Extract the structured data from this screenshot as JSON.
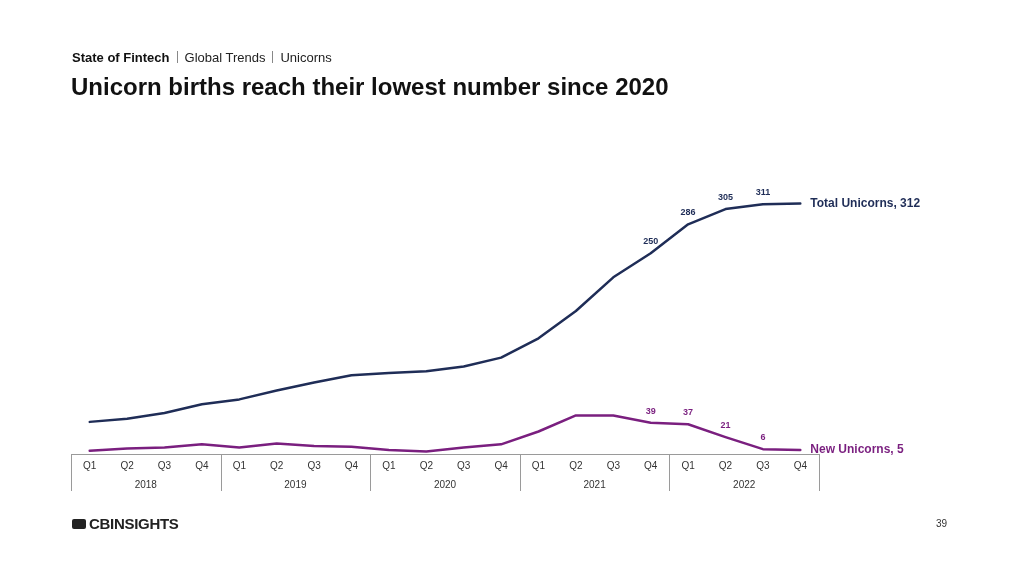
{
  "header": {
    "breadcrumb": [
      "State of Fintech",
      "Global Trends",
      "Unicorns"
    ]
  },
  "chart_data": {
    "type": "line",
    "title": "Unicorn births reach their lowest number since 2020",
    "categories": [
      "Q1",
      "Q2",
      "Q3",
      "Q4",
      "Q1",
      "Q2",
      "Q3",
      "Q4",
      "Q1",
      "Q2",
      "Q3",
      "Q4",
      "Q1",
      "Q2",
      "Q3",
      "Q4",
      "Q1",
      "Q2",
      "Q3",
      "Q4"
    ],
    "category_groups": [
      "2018",
      "2019",
      "2020",
      "2021",
      "2022"
    ],
    "series": [
      {
        "name": "Total Unicorns",
        "color": "#1f2d57",
        "values": [
          40,
          44,
          51,
          62,
          68,
          79,
          89,
          98,
          101,
          103,
          109,
          120,
          144,
          178,
          220,
          250,
          286,
          305,
          311,
          312
        ],
        "value_labels": [
          null,
          null,
          null,
          null,
          null,
          null,
          null,
          null,
          null,
          null,
          null,
          null,
          null,
          null,
          null,
          "250",
          "286",
          "305",
          "311",
          "Total Unicorns, 312"
        ]
      },
      {
        "name": "New Unicorns",
        "color": "#7a1f7f",
        "values": [
          4,
          7,
          8,
          12,
          8,
          13,
          10,
          9,
          5,
          3,
          8,
          12,
          28,
          48,
          48,
          39,
          37,
          21,
          6,
          5
        ],
        "value_labels": [
          null,
          null,
          null,
          null,
          null,
          null,
          null,
          null,
          null,
          null,
          null,
          null,
          null,
          null,
          null,
          "39",
          "37",
          "21",
          "6",
          "New Unicorns, 5"
        ]
      }
    ],
    "ylim": [
      0,
      320
    ],
    "grid": false,
    "data_labels": true,
    "tick_labels": "x"
  },
  "footer": {
    "logo": "CBINSIGHTS",
    "page": 39
  }
}
